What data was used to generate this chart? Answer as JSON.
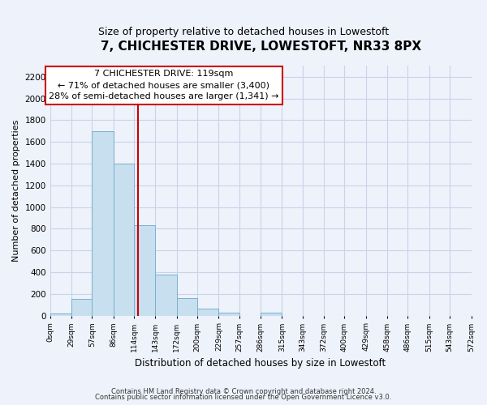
{
  "title": "7, CHICHESTER DRIVE, LOWESTOFT, NR33 8PX",
  "subtitle": "Size of property relative to detached houses in Lowestoft",
  "xlabel": "Distribution of detached houses by size in Lowestoft",
  "ylabel": "Number of detached properties",
  "bar_edges": [
    0,
    29,
    57,
    86,
    114,
    143,
    172,
    200,
    229,
    257,
    286,
    315,
    343,
    372,
    400,
    429,
    458,
    486,
    515,
    543,
    572
  ],
  "bar_heights": [
    20,
    155,
    1700,
    1400,
    830,
    380,
    165,
    65,
    30,
    0,
    30,
    0,
    0,
    0,
    0,
    0,
    0,
    0,
    0,
    0
  ],
  "bar_color": "#c8dff0",
  "bar_edge_color": "#7ab0cc",
  "property_line_x": 119,
  "property_line_color": "#cc0000",
  "annotation_title": "7 CHICHESTER DRIVE: 119sqm",
  "annotation_line1": "← 71% of detached houses are smaller (3,400)",
  "annotation_line2": "28% of semi-detached houses are larger (1,341) →",
  "ylim": [
    0,
    2300
  ],
  "yticks": [
    0,
    200,
    400,
    600,
    800,
    1000,
    1200,
    1400,
    1600,
    1800,
    2000,
    2200
  ],
  "tick_labels": [
    "0sqm",
    "29sqm",
    "57sqm",
    "86sqm",
    "114sqm",
    "143sqm",
    "172sqm",
    "200sqm",
    "229sqm",
    "257sqm",
    "286sqm",
    "315sqm",
    "343sqm",
    "372sqm",
    "400sqm",
    "429sqm",
    "458sqm",
    "486sqm",
    "515sqm",
    "543sqm",
    "572sqm"
  ],
  "footer_line1": "Contains HM Land Registry data © Crown copyright and database right 2024.",
  "footer_line2": "Contains public sector information licensed under the Open Government Licence v3.0.",
  "bg_color": "#eef2fb",
  "grid_color": "#c8d4e8",
  "title_fontsize": 11,
  "subtitle_fontsize": 9
}
